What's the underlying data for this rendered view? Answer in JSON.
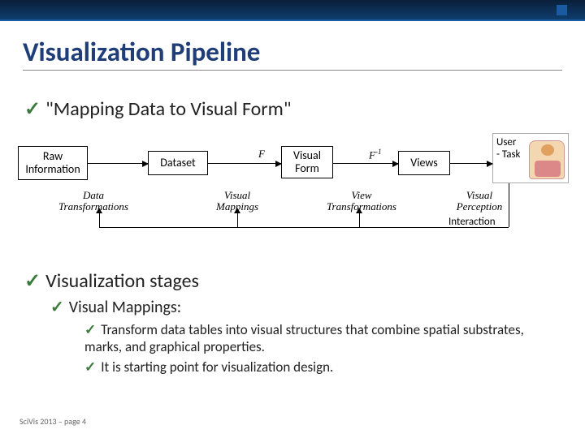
{
  "title": "Visualization Pipeline",
  "bullets": {
    "mapping": "\"Mapping Data to Visual Form\"",
    "stages": "Visualization stages",
    "vmappings": "Visual Mappings:",
    "vm_point1": "Transform data tables into visual structures that combine spatial substrates, marks, and graphical properties.",
    "vm_point2": "It is starting point for visualization design."
  },
  "diagram": {
    "nodes": {
      "raw": "Raw Information",
      "dataset": "Dataset",
      "visual_form": "Visual Form",
      "views": "Views",
      "user_line1": "User",
      "user_line2": "- Task"
    },
    "top_labels": {
      "F": "F",
      "Finv_base": "F",
      "Finv_exp": "-1"
    },
    "stage_labels": {
      "data_transformations": "Data Transformations",
      "visual_mappings": "Visual Mappings",
      "view_transformations": "View Transformations",
      "visual_perception": "Visual Perception"
    },
    "interaction_label": "Interaction"
  },
  "footer": "SciVis 2013 – page 4",
  "checkmark": "✓"
}
